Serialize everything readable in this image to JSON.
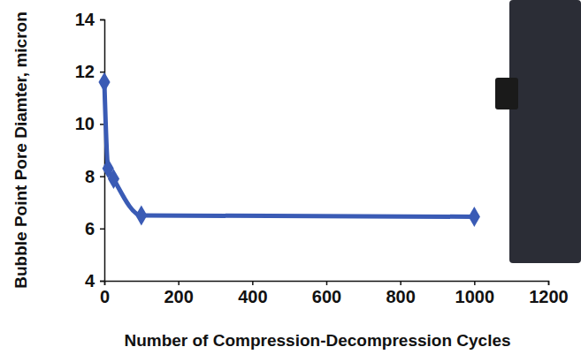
{
  "chart_data": {
    "type": "line",
    "x_label": "Number of Compression-Decompression Cycles",
    "y_label": "Bubble Point Pore Diamter, micron",
    "x": [
      0,
      10,
      25,
      100,
      1000
    ],
    "series": [
      {
        "values": [
          11.6,
          8.3,
          7.9,
          6.5,
          6.45
        ],
        "color": "#3a5bb5",
        "marker": "diamond"
      }
    ],
    "xlim": [
      0,
      1200
    ],
    "xticks": [
      0,
      200,
      400,
      600,
      800,
      1000,
      1200
    ],
    "ylim": [
      4,
      14
    ],
    "yticks": [
      4,
      6,
      8,
      10,
      12,
      14
    ],
    "grid": false
  }
}
